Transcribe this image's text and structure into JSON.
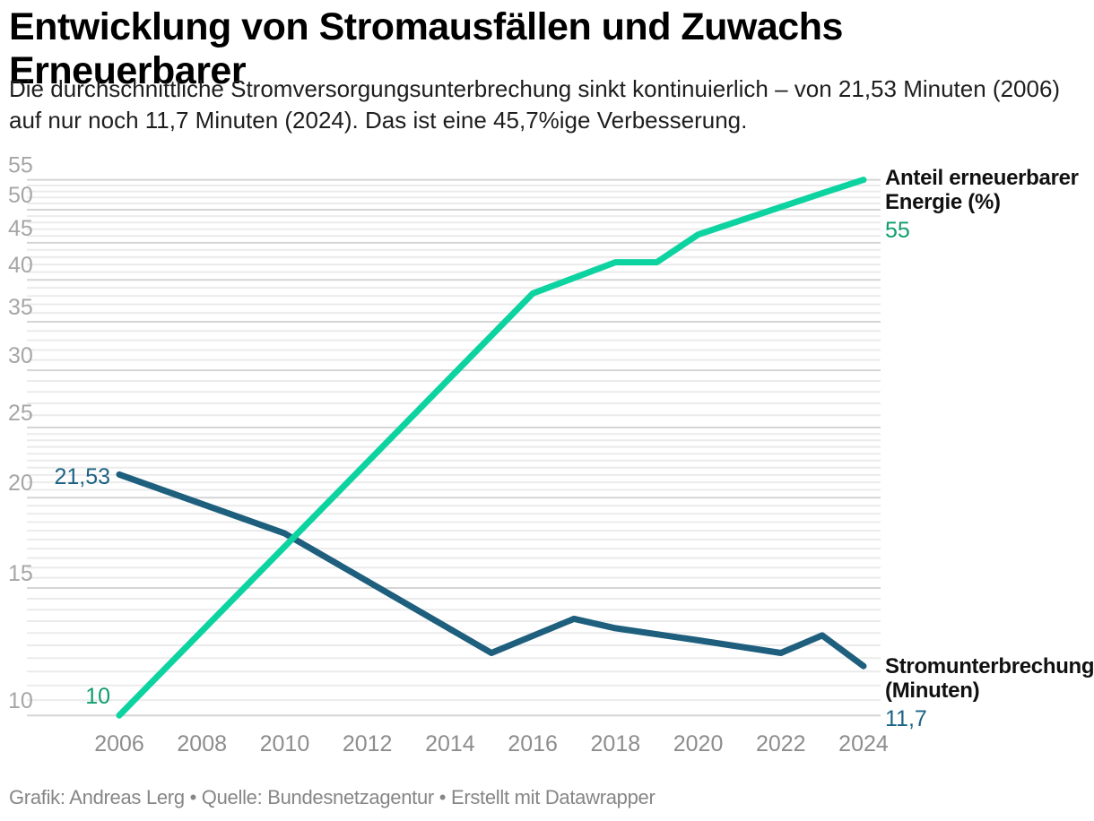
{
  "header": {
    "title": "Entwicklung von Stromausfällen und Zuwachs Erneuerbarer",
    "subtitle": "Die durchschnittliche Stromversorgungsunterbrechung sinkt kontinuierlich – von 21,53 Minuten (2006) auf nur noch 11,7 Minuten (2024). Das ist eine 45,7%ige Verbesserung."
  },
  "footer": {
    "credit": "Grafik: Andreas Lerg • Quelle: Bundesnetzagentur • Erstellt mit Datawrapper"
  },
  "chart_data": {
    "type": "line",
    "title": "Entwicklung von Stromausfällen und Zuwachs Erneuerbarer",
    "xlabel": "",
    "ylabel": "",
    "y_scale": "log",
    "ylim": [
      10,
      55
    ],
    "xlim": [
      2006,
      2024
    ],
    "grid": "horizontal minor + major gridlines, no vertical grid",
    "legend_position": "direct labels right of line ends",
    "x_ticks": [
      2006,
      2008,
      2010,
      2012,
      2014,
      2016,
      2018,
      2020,
      2022,
      2024
    ],
    "y_ticks": [
      55,
      50,
      45,
      40,
      35,
      30,
      25,
      20,
      15,
      10
    ],
    "series": [
      {
        "name": "Anteil erneuerbarer Energie (%)",
        "color": "#0dd3a0",
        "label_color": "#0f9d6e",
        "x": [
          2006,
          2016,
          2018,
          2019,
          2020,
          2023,
          2024
        ],
        "values": [
          10,
          38.3,
          42.3,
          42.3,
          46.2,
          52.7,
          55
        ],
        "start_label": "10",
        "end_label": "55"
      },
      {
        "name": "Stromunterbrechung (Minuten)",
        "color": "#1e5f7e",
        "label_color": "#1d6384",
        "x": [
          2006,
          2010,
          2015,
          2017,
          2018,
          2020,
          2022,
          2023,
          2024
        ],
        "values": [
          21.53,
          17.85,
          12.2,
          13.6,
          13.2,
          12.7,
          12.2,
          12.9,
          11.7
        ],
        "start_label": "21,53",
        "end_label": "11,7"
      }
    ],
    "annotations": {
      "renewables": {
        "line1": "Anteil erneuerbarer",
        "line2": "Energie (%)",
        "value": "55"
      },
      "interruption": {
        "line1": "Stromunterbrechung",
        "line2": "(Minuten)",
        "value": "11,7"
      }
    }
  }
}
